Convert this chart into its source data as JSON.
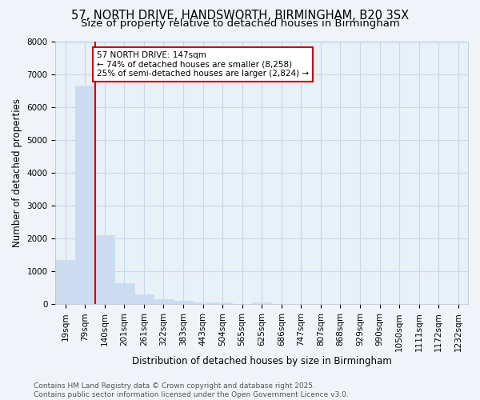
{
  "title1": "57, NORTH DRIVE, HANDSWORTH, BIRMINGHAM, B20 3SX",
  "title2": "Size of property relative to detached houses in Birmingham",
  "xlabel": "Distribution of detached houses by size in Birmingham",
  "ylabel": "Number of detached properties",
  "categories": [
    "19sqm",
    "79sqm",
    "140sqm",
    "201sqm",
    "261sqm",
    "322sqm",
    "383sqm",
    "443sqm",
    "504sqm",
    "565sqm",
    "625sqm",
    "686sqm",
    "747sqm",
    "807sqm",
    "868sqm",
    "929sqm",
    "990sqm",
    "1050sqm",
    "1111sqm",
    "1172sqm",
    "1232sqm"
  ],
  "values": [
    1350,
    6650,
    2100,
    650,
    300,
    150,
    100,
    50,
    50,
    0,
    50,
    0,
    0,
    0,
    0,
    0,
    0,
    0,
    0,
    0,
    0
  ],
  "bar_color": "#ccdcf0",
  "bar_edge_color": "#ccdcf0",
  "grid_color": "#c8d8e8",
  "bg_color": "#e8f0f8",
  "fig_bg_color": "#f0f4f8",
  "red_line_index": 2,
  "annotation_text": "57 NORTH DRIVE: 147sqm\n← 74% of detached houses are smaller (8,258)\n25% of semi-detached houses are larger (2,824) →",
  "annotation_box_color": "#ffffff",
  "annotation_box_edge": "#cc0000",
  "ylim": [
    0,
    8000
  ],
  "yticks": [
    0,
    1000,
    2000,
    3000,
    4000,
    5000,
    6000,
    7000,
    8000
  ],
  "footer1": "Contains HM Land Registry data © Crown copyright and database right 2025.",
  "footer2": "Contains public sector information licensed under the Open Government Licence v3.0.",
  "title_fontsize": 10.5,
  "subtitle_fontsize": 9.5,
  "axis_label_fontsize": 8.5,
  "tick_fontsize": 7.5,
  "annotation_fontsize": 7.5,
  "footer_fontsize": 6.5
}
